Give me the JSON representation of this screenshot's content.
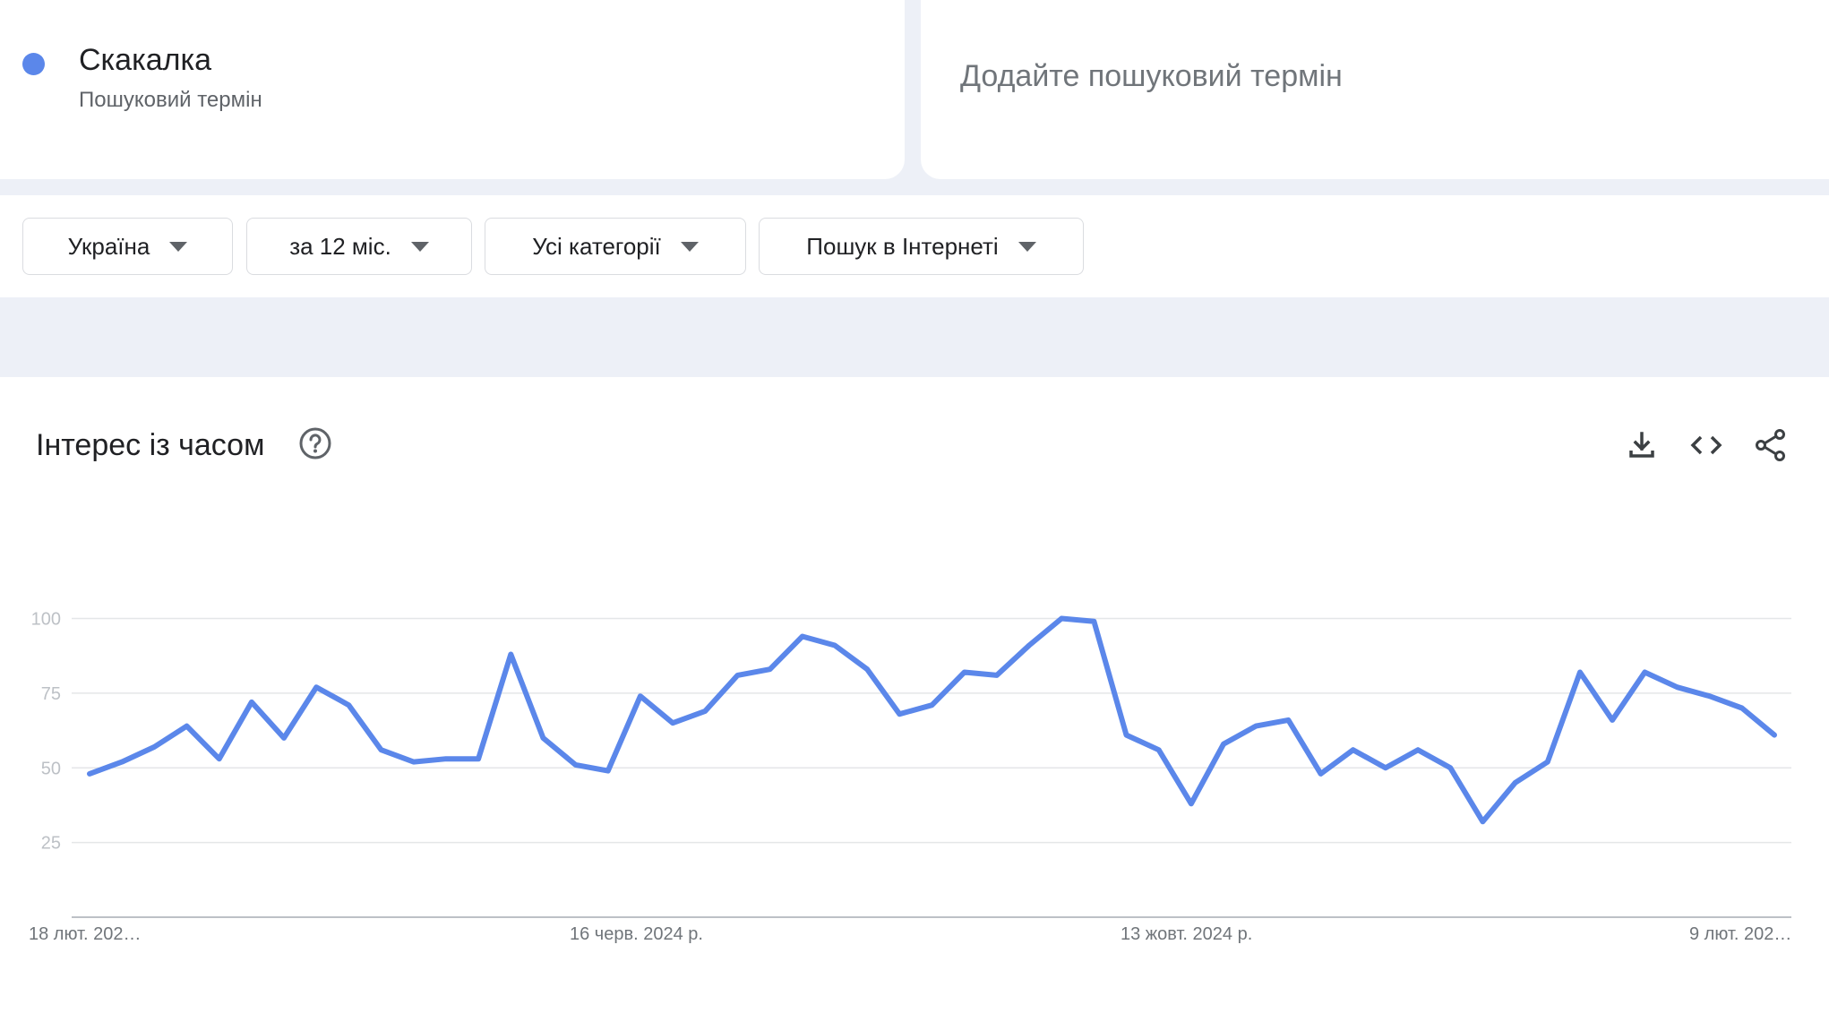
{
  "search_terms": [
    {
      "name": "Скакалка",
      "type": "Пошуковий термін",
      "color": "#5b87ea"
    }
  ],
  "add_term": {
    "placeholder": "Додайте пошуковий термін"
  },
  "filters": {
    "region": "Україна",
    "period": "за 12 міс.",
    "category": "Усі категорії",
    "property": "Пошук в Інтернеті"
  },
  "chart_card": {
    "title": "Інтерес із часом",
    "icons": [
      "help-circle-icon",
      "download-icon",
      "embed-code-icon",
      "share-icon"
    ]
  },
  "chart_data": {
    "type": "line",
    "ylim": [
      0,
      100
    ],
    "y_ticks": [
      "25",
      "50",
      "75",
      "100"
    ],
    "x_tick_labels": [
      "18 лют. 202…",
      "16 черв. 2024 р.",
      "13 жовт. 2024 р.",
      "9 лют. 202…"
    ],
    "grid": true,
    "series": [
      {
        "color": "#5b87ea",
        "values": [
          48,
          52,
          57,
          64,
          53,
          72,
          60,
          77,
          71,
          56,
          52,
          53,
          53,
          88,
          60,
          51,
          49,
          74,
          65,
          69,
          81,
          83,
          94,
          91,
          83,
          68,
          71,
          82,
          81,
          91,
          100,
          99,
          61,
          56,
          38,
          58,
          64,
          66,
          48,
          56,
          50,
          56,
          50,
          32,
          45,
          52,
          82,
          66,
          82,
          77,
          74,
          70,
          61
        ]
      }
    ]
  }
}
